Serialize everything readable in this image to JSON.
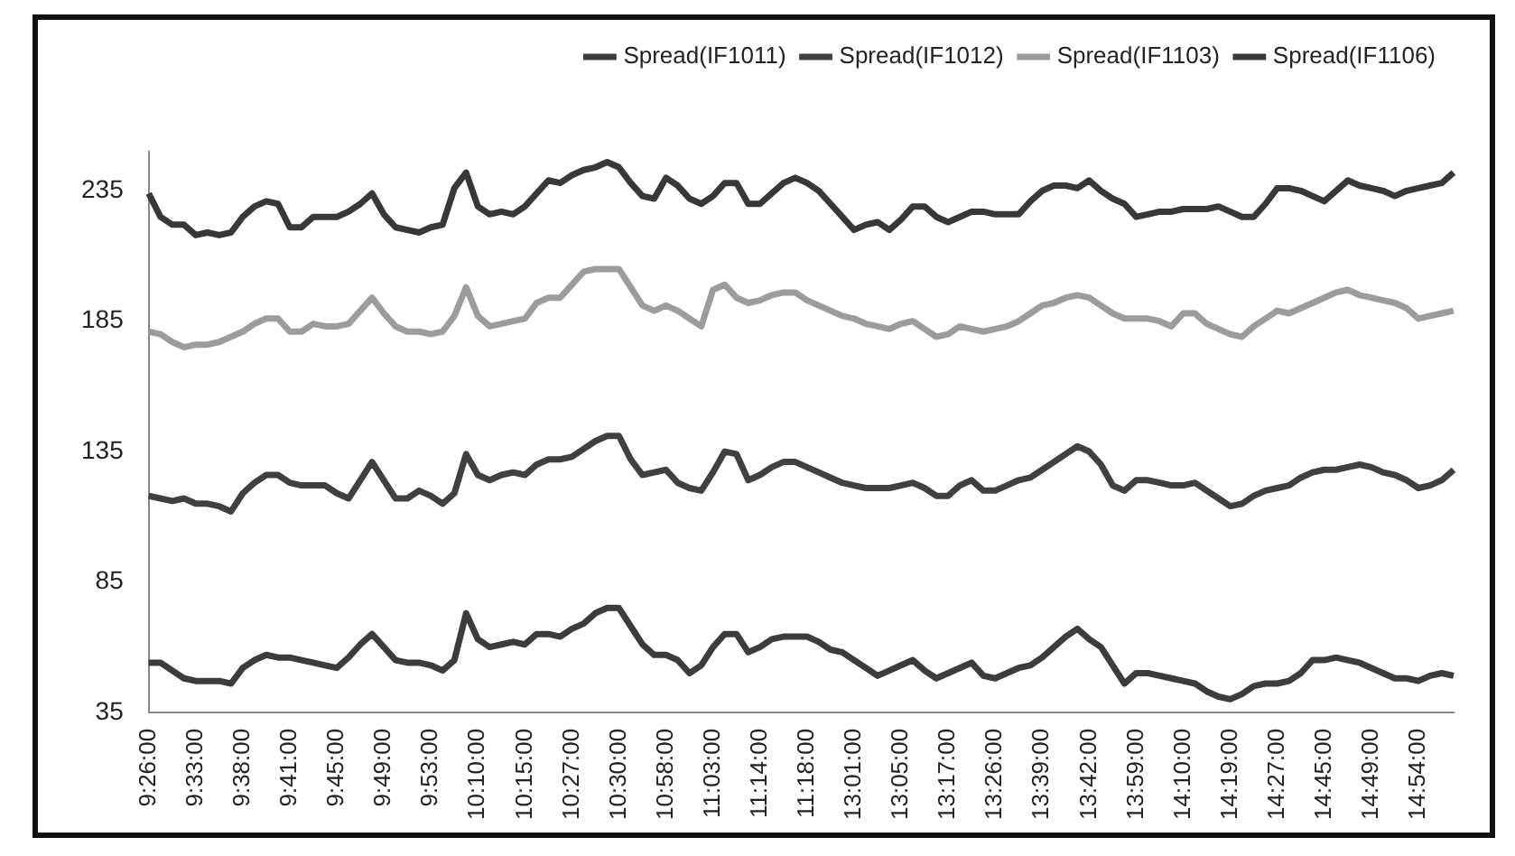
{
  "chart_data": {
    "type": "line",
    "categories": [
      "9:26:00",
      null,
      null,
      null,
      "9:33:00",
      null,
      null,
      null,
      "9:38:00",
      null,
      null,
      null,
      "9:41:00",
      null,
      null,
      null,
      "9:45:00",
      null,
      null,
      null,
      "9:49:00",
      null,
      null,
      null,
      "9:53:00",
      null,
      null,
      null,
      "10:10:00",
      null,
      null,
      null,
      "10:15:00",
      null,
      null,
      null,
      "10:27:00",
      null,
      null,
      null,
      "10:30:00",
      null,
      null,
      null,
      "10:58:00",
      null,
      null,
      null,
      "11:03:00",
      null,
      null,
      null,
      "11:14:00",
      null,
      null,
      null,
      "11:18:00",
      null,
      null,
      null,
      "13:01:00",
      null,
      null,
      null,
      "13:05:00",
      null,
      null,
      null,
      "13:17:00",
      null,
      null,
      null,
      "13:26:00",
      null,
      null,
      null,
      "13:39:00",
      null,
      null,
      null,
      "13:42:00",
      null,
      null,
      null,
      "13:59:00",
      null,
      null,
      null,
      "14:10:00",
      null,
      null,
      null,
      "14:19:00",
      null,
      null,
      null,
      "14:27:00",
      null,
      null,
      null,
      "14:45:00",
      null,
      null,
      null,
      "14:49:00",
      null,
      null,
      null,
      "14:54:00",
      null,
      null,
      null
    ],
    "series": [
      {
        "name": "Spread(IF1011)",
        "color": "#3c3c3c",
        "values": [
          54,
          54,
          51,
          48,
          47,
          47,
          47,
          46,
          52,
          55,
          57,
          56,
          56,
          55,
          54,
          53,
          52,
          56,
          61,
          65,
          60,
          55,
          54,
          54,
          53,
          51,
          55,
          73,
          63,
          60,
          61,
          62,
          61,
          65,
          65,
          64,
          67,
          69,
          73,
          75,
          75,
          68,
          61,
          57,
          57,
          55,
          50,
          53,
          60,
          65,
          65,
          58,
          60,
          63,
          64,
          64,
          64,
          62,
          59,
          58,
          55,
          52,
          49,
          51,
          53,
          55,
          51,
          48,
          50,
          52,
          54,
          49,
          48,
          50,
          52,
          53,
          56,
          60,
          64,
          67,
          63,
          60,
          53,
          46,
          50,
          50,
          49,
          48,
          47,
          46,
          43,
          41,
          40,
          42,
          45,
          46,
          46,
          47,
          50,
          55,
          55,
          56,
          55,
          54,
          52,
          50,
          48,
          48,
          47,
          49,
          50,
          49
        ]
      },
      {
        "name": "Spread(IF1012)",
        "color": "#404040",
        "values": [
          118,
          117,
          116,
          117,
          115,
          115,
          114,
          112,
          119,
          123,
          126,
          126,
          123,
          122,
          122,
          122,
          119,
          117,
          124,
          131,
          124,
          117,
          117,
          120,
          118,
          115,
          119,
          134,
          126,
          124,
          126,
          127,
          126,
          130,
          132,
          132,
          133,
          136,
          139,
          141,
          141,
          132,
          126,
          127,
          128,
          123,
          121,
          120,
          127,
          135,
          134,
          124,
          126,
          129,
          131,
          131,
          129,
          127,
          125,
          123,
          122,
          121,
          121,
          121,
          122,
          123,
          121,
          118,
          118,
          122,
          124,
          120,
          120,
          122,
          124,
          125,
          128,
          131,
          134,
          137,
          135,
          130,
          122,
          120,
          124,
          124,
          123,
          122,
          122,
          123,
          120,
          117,
          114,
          115,
          118,
          120,
          121,
          122,
          125,
          127,
          128,
          128,
          129,
          130,
          129,
          127,
          126,
          124,
          121,
          122,
          124,
          128
        ]
      },
      {
        "name": "Spread(IF1103)",
        "color": "#9c9c9c",
        "values": [
          181,
          180,
          177,
          175,
          176,
          176,
          177,
          179,
          181,
          184,
          186,
          186,
          181,
          181,
          184,
          183,
          183,
          184,
          189,
          194,
          188,
          183,
          181,
          181,
          180,
          181,
          187,
          198,
          187,
          183,
          184,
          185,
          186,
          192,
          194,
          194,
          199,
          204,
          205,
          205,
          205,
          198,
          191,
          189,
          191,
          189,
          186,
          183,
          197,
          199,
          194,
          192,
          193,
          195,
          196,
          196,
          193,
          191,
          189,
          187,
          186,
          184,
          183,
          182,
          184,
          185,
          182,
          179,
          180,
          183,
          182,
          181,
          182,
          183,
          185,
          188,
          191,
          192,
          194,
          195,
          194,
          191,
          188,
          186,
          186,
          186,
          185,
          183,
          188,
          188,
          184,
          182,
          180,
          179,
          183,
          186,
          189,
          188,
          190,
          192,
          194,
          196,
          197,
          195,
          194,
          193,
          192,
          190,
          186,
          187,
          188,
          189
        ]
      },
      {
        "name": "Spread(IF1106)",
        "color": "#383838",
        "values": [
          234,
          225,
          222,
          222,
          218,
          219,
          218,
          219,
          225,
          229,
          231,
          230,
          221,
          221,
          225,
          225,
          225,
          227,
          230,
          234,
          226,
          221,
          220,
          219,
          221,
          222,
          236,
          242,
          229,
          226,
          227,
          226,
          229,
          234,
          239,
          238,
          241,
          243,
          244,
          246,
          244,
          238,
          233,
          232,
          240,
          237,
          232,
          230,
          233,
          238,
          238,
          230,
          230,
          234,
          238,
          240,
          238,
          235,
          230,
          225,
          220,
          222,
          223,
          220,
          224,
          229,
          229,
          225,
          223,
          225,
          227,
          227,
          226,
          226,
          226,
          231,
          235,
          237,
          237,
          236,
          239,
          235,
          232,
          230,
          225,
          226,
          227,
          227,
          228,
          228,
          228,
          229,
          227,
          225,
          225,
          230,
          236,
          236,
          235,
          233,
          231,
          235,
          239,
          237,
          236,
          235,
          233,
          235,
          236,
          237,
          238,
          242
        ]
      }
    ],
    "ylim": [
      35,
      250
    ],
    "yticks": [
      35,
      85,
      135,
      185,
      235
    ],
    "grid": false,
    "legend": "top right",
    "marker": "none",
    "line_style": "solid"
  }
}
